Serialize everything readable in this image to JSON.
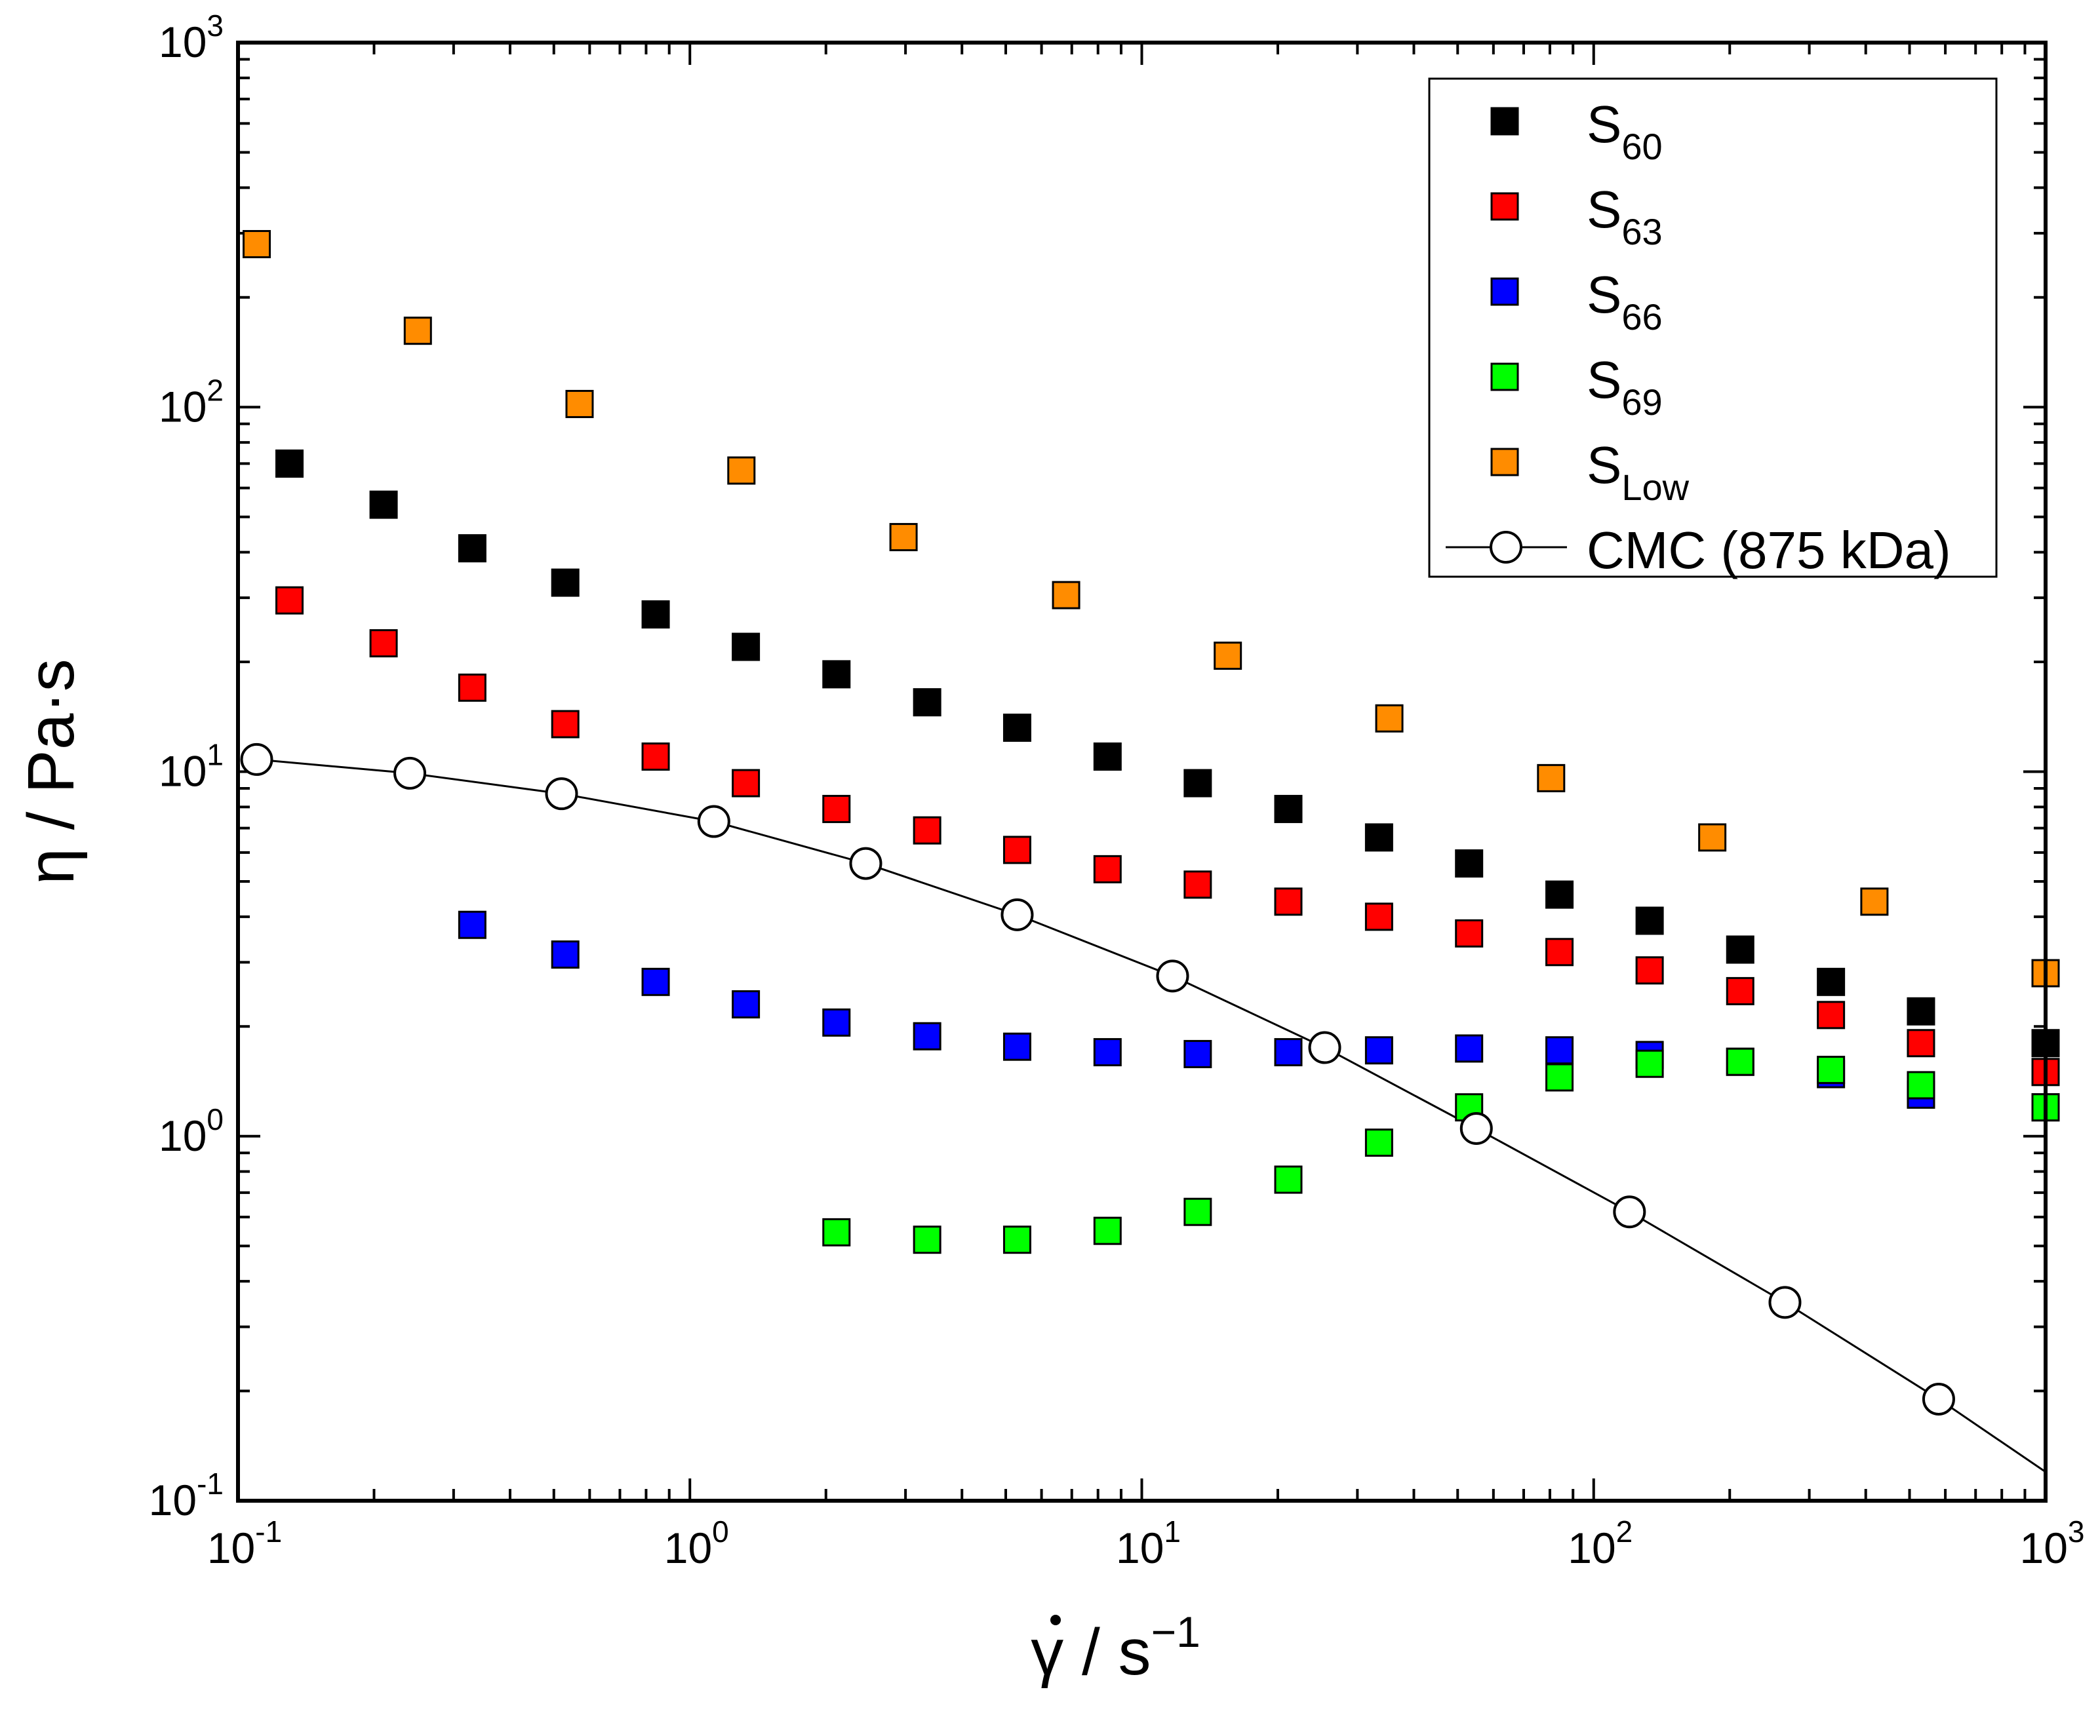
{
  "chart_data": {
    "type": "scatter",
    "title": "",
    "xlabel": {
      "symbol": "γ",
      "rest": " / s",
      "exp": "−1"
    },
    "ylabel": "η / Pa·s",
    "xscale": "log",
    "yscale": "log",
    "xlim": [
      0.1,
      1000
    ],
    "ylim": [
      0.1,
      1000
    ],
    "x_ticks": [
      {
        "value": 0.1,
        "base": "10",
        "exp": "-1"
      },
      {
        "value": 1,
        "base": "10",
        "exp": "0"
      },
      {
        "value": 10,
        "base": "10",
        "exp": "1"
      },
      {
        "value": 100,
        "base": "10",
        "exp": "2"
      },
      {
        "value": 1000,
        "base": "10",
        "exp": "3"
      }
    ],
    "y_ticks": [
      {
        "value": 0.1,
        "base": "10",
        "exp": "-1"
      },
      {
        "value": 1,
        "base": "10",
        "exp": "0"
      },
      {
        "value": 10,
        "base": "10",
        "exp": "1"
      },
      {
        "value": 100,
        "base": "10",
        "exp": "2"
      },
      {
        "value": 1000,
        "base": "10",
        "exp": "3"
      }
    ],
    "legend_position": "top-right",
    "series": [
      {
        "name": "S60",
        "label_main": "S",
        "label_sub": "60",
        "color": "#000000",
        "marker": "square",
        "x": [
          0.13,
          0.21,
          0.33,
          0.53,
          0.84,
          1.33,
          2.11,
          3.35,
          5.3,
          8.4,
          13.3,
          21.1,
          33.5,
          53,
          84,
          133,
          211,
          335,
          530,
          1000
        ],
        "y": [
          70,
          54,
          41,
          33,
          27,
          22,
          18.5,
          15.5,
          13.2,
          11,
          9.3,
          7.9,
          6.6,
          5.6,
          4.6,
          3.9,
          3.25,
          2.65,
          2.2,
          1.8
        ]
      },
      {
        "name": "S63",
        "label_main": "S",
        "label_sub": "63",
        "color": "#ff0000",
        "marker": "square",
        "x": [
          0.13,
          0.21,
          0.33,
          0.53,
          0.84,
          1.33,
          2.11,
          3.35,
          5.3,
          8.4,
          13.3,
          21.1,
          33.5,
          53,
          84,
          133,
          211,
          335,
          530,
          1000
        ],
        "y": [
          29.5,
          22.5,
          17,
          13.5,
          11,
          9.3,
          7.9,
          6.9,
          6.1,
          5.4,
          4.9,
          4.4,
          4.0,
          3.6,
          3.2,
          2.85,
          2.5,
          2.15,
          1.8,
          1.5
        ]
      },
      {
        "name": "S66",
        "label_main": "S",
        "label_sub": "66",
        "color": "#0000ff",
        "marker": "square",
        "x": [
          0.33,
          0.53,
          0.84,
          1.33,
          2.11,
          3.35,
          5.3,
          8.4,
          13.3,
          21.1,
          33.5,
          53,
          84,
          133,
          211,
          335,
          530,
          1000
        ],
        "y": [
          3.8,
          3.15,
          2.65,
          2.3,
          2.05,
          1.88,
          1.76,
          1.7,
          1.68,
          1.7,
          1.72,
          1.74,
          1.72,
          1.67,
          1.6,
          1.48,
          1.3,
          1.2
        ]
      },
      {
        "name": "S69",
        "label_main": "S",
        "label_sub": "69",
        "color": "#00ff00",
        "marker": "square",
        "x": [
          2.11,
          3.35,
          5.3,
          8.4,
          13.3,
          21.1,
          33.5,
          53,
          84,
          133,
          211,
          335,
          530,
          1000
        ],
        "y": [
          0.545,
          0.52,
          0.52,
          0.55,
          0.62,
          0.76,
          0.96,
          1.2,
          1.45,
          1.58,
          1.6,
          1.52,
          1.38,
          1.2
        ]
      },
      {
        "name": "SLow",
        "label_main": "S",
        "label_sub": "Low",
        "color": "#ff8c00",
        "marker": "square",
        "x": [
          0.11,
          0.25,
          0.57,
          1.3,
          2.97,
          6.8,
          15.5,
          35.3,
          80.5,
          183,
          418,
          1000
        ],
        "y": [
          280,
          162,
          102,
          67,
          44,
          30.5,
          20.8,
          14,
          9.6,
          6.6,
          4.4,
          2.8
        ]
      },
      {
        "name": "CMC (875 kDa)",
        "label_main": "CMC (875 kDa)",
        "label_sub": "",
        "color": "#000000",
        "marker": "circle-open",
        "line": true,
        "x": [
          0.11,
          0.24,
          0.52,
          1.13,
          2.45,
          5.3,
          11.7,
          25.4,
          55,
          120,
          265,
          580,
          1000
        ],
        "y": [
          10.8,
          9.9,
          8.7,
          7.3,
          5.6,
          4.05,
          2.75,
          1.75,
          1.05,
          0.62,
          0.35,
          0.19,
          0.12
        ]
      }
    ]
  }
}
